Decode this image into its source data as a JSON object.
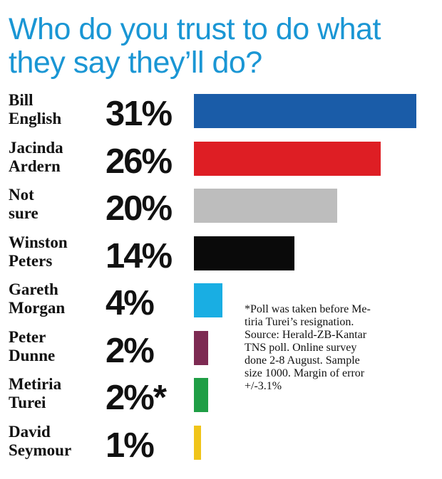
{
  "chart_data": {
    "type": "bar",
    "title": "Who do you trust to do what they say they’ll do?",
    "categories": [
      "Bill\nEnglish",
      "Jacinda\nArdern",
      "Not\nsure",
      "Winston\nPeters",
      "Gareth\nMorgan",
      "Peter\nDunne",
      "Metiria\nTurei",
      "David\nSeymour"
    ],
    "values": [
      31,
      26,
      20,
      14,
      4,
      2,
      2,
      1
    ],
    "value_labels": [
      "31%",
      "26%",
      "20%",
      "14%",
      "4%",
      "2%",
      "2%*",
      "1%"
    ],
    "colors": [
      "#1a5ca8",
      "#de1e24",
      "#bdbdbd",
      "#0a0a0a",
      "#19aee3",
      "#7d2a52",
      "#1f9e45",
      "#f0c419"
    ],
    "xlim": [
      0,
      31
    ],
    "footnote": "*Poll was taken before Me-\ntiria Turei’s resignation.\nSource: Herald-ZB-Kantar\nTNS poll.  Online survey\ndone 2-8 August. Sample\nsize 1000. Margin of error\n+/-3.1%"
  }
}
